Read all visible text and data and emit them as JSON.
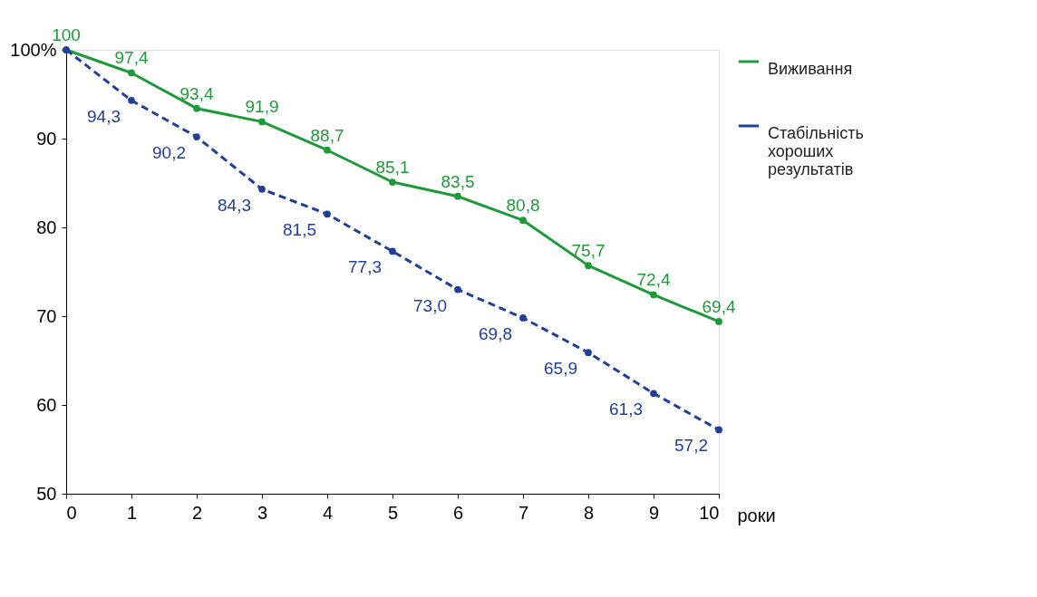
{
  "chart_data": {
    "type": "line",
    "xlabel": "роки",
    "x": [
      0,
      1,
      2,
      3,
      4,
      5,
      6,
      7,
      8,
      9,
      10
    ],
    "xlim": [
      0,
      10
    ],
    "xticks": [
      0,
      1,
      2,
      3,
      4,
      5,
      6,
      7,
      8,
      9,
      10
    ],
    "ylim": [
      50,
      100
    ],
    "yticks": [
      50,
      60,
      70,
      80,
      90,
      {
        "value": 100,
        "label": "100%"
      }
    ],
    "series": [
      {
        "name": "Виживання",
        "color": "#1f9a3a",
        "line_style": "solid",
        "values": [
          100,
          97.4,
          93.4,
          91.9,
          88.7,
          85.1,
          83.5,
          80.8,
          75.7,
          72.4,
          69.4
        ],
        "value_labels": [
          "100",
          "97,4",
          "93,4",
          "91,9",
          "88,7",
          "85,1",
          "83,5",
          "80,8",
          "75,7",
          "72,4",
          "69,4"
        ]
      },
      {
        "name": "Стабільність хороших результатів",
        "color": "#1f3f99",
        "line_style": "dashed",
        "values": [
          100,
          94.3,
          90.2,
          84.3,
          81.5,
          77.3,
          73.0,
          69.8,
          65.9,
          61.3,
          57.2
        ],
        "value_labels": [
          null,
          "94,3",
          "90,2",
          "84,3",
          "81,5",
          "77,3",
          "73,0",
          "69,8",
          "65,9",
          "61,3",
          "57,2"
        ]
      }
    ],
    "marker": "circle",
    "grid": false,
    "legend": "right"
  }
}
